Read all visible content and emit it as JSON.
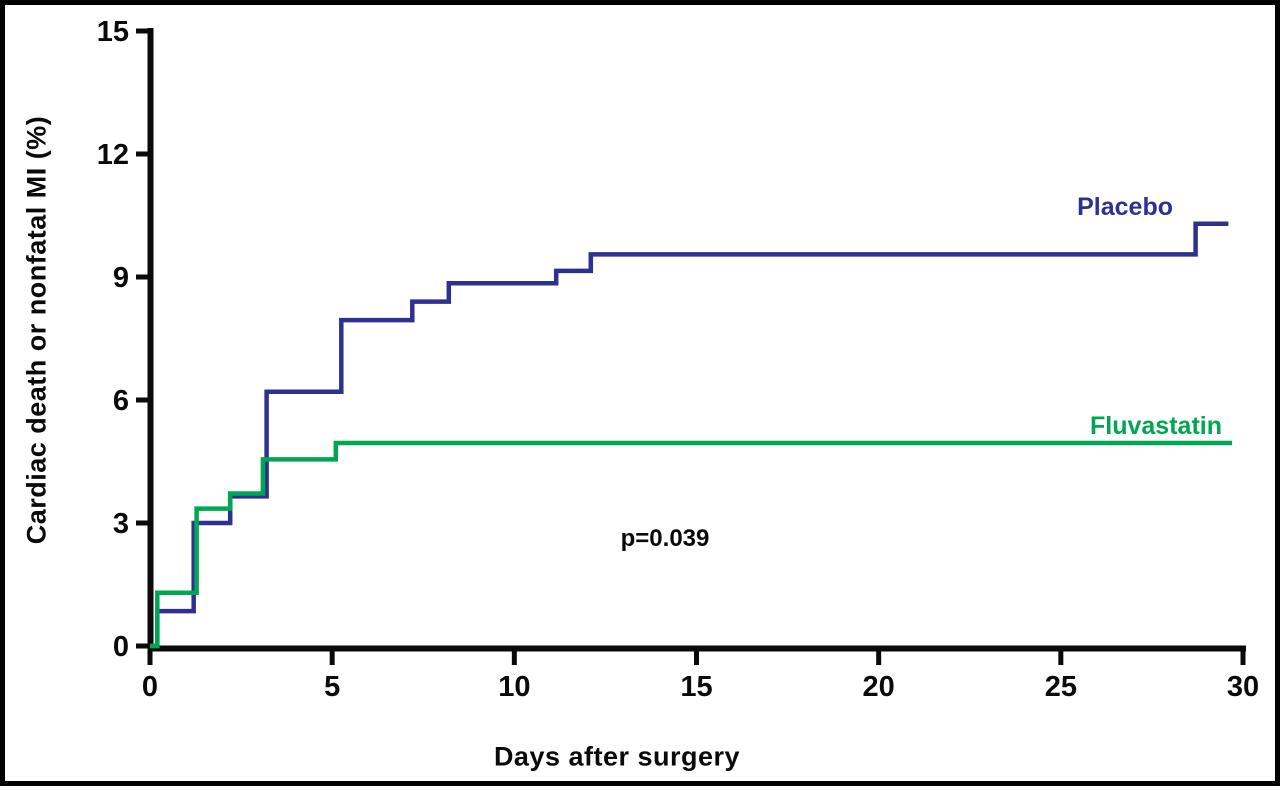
{
  "figure": {
    "background": "#ffffff",
    "frame_color": "#000000",
    "axis_color": "#0a0a0a",
    "text_color": "#0a0a0a"
  },
  "chart_data": {
    "type": "line",
    "subtype": "step",
    "title": "",
    "xlabel": "Days after surgery",
    "ylabel": "Cardiac death or nonfatal MI (%)",
    "xlim": [
      0,
      30
    ],
    "ylim": [
      0,
      15
    ],
    "x_ticks": [
      0,
      5,
      10,
      15,
      20,
      25,
      30
    ],
    "y_ticks": [
      0,
      3,
      6,
      9,
      12,
      15
    ],
    "grid": false,
    "legend_position": "inline-right",
    "annotation": "p=0.039",
    "series": [
      {
        "name": "Placebo",
        "color": "#2e3192",
        "points": [
          [
            0,
            0
          ],
          [
            0.2,
            0
          ],
          [
            0.2,
            0.85
          ],
          [
            1.2,
            0.85
          ],
          [
            1.2,
            3.0
          ],
          [
            2.2,
            3.0
          ],
          [
            2.2,
            3.65
          ],
          [
            3.2,
            3.65
          ],
          [
            3.2,
            6.2
          ],
          [
            5.25,
            6.2
          ],
          [
            5.25,
            7.95
          ],
          [
            7.2,
            7.95
          ],
          [
            7.2,
            8.4
          ],
          [
            8.2,
            8.4
          ],
          [
            8.2,
            8.85
          ],
          [
            11.15,
            8.85
          ],
          [
            11.15,
            9.15
          ],
          [
            12.1,
            9.15
          ],
          [
            12.1,
            9.55
          ],
          [
            28.7,
            9.55
          ],
          [
            28.7,
            10.3
          ],
          [
            29.6,
            10.3
          ]
        ]
      },
      {
        "name": "Fluvastatin",
        "color": "#00a651",
        "points": [
          [
            0,
            0
          ],
          [
            0.2,
            0
          ],
          [
            0.2,
            1.3
          ],
          [
            1.28,
            1.3
          ],
          [
            1.28,
            3.35
          ],
          [
            2.2,
            3.35
          ],
          [
            2.2,
            3.72
          ],
          [
            3.1,
            3.72
          ],
          [
            3.1,
            4.55
          ],
          [
            5.1,
            4.55
          ],
          [
            5.1,
            4.95
          ],
          [
            29.7,
            4.95
          ]
        ]
      }
    ]
  }
}
